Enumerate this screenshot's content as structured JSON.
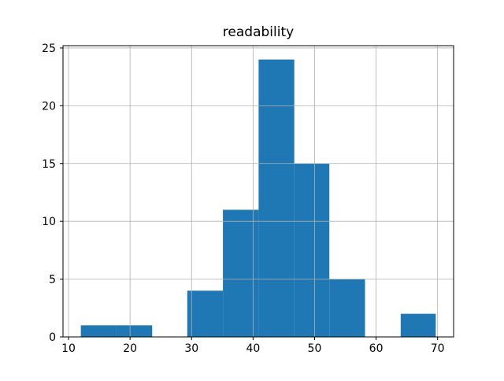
{
  "figure": {
    "background": "#ffffff"
  },
  "chart_data": {
    "type": "bar",
    "subtype": "histogram",
    "title": "readability",
    "xlabel": "",
    "ylabel": "",
    "bin_edges": [
      12.0,
      17.8,
      23.6,
      29.3,
      35.1,
      40.9,
      46.7,
      52.4,
      58.2,
      64.0,
      69.7
    ],
    "counts": [
      1,
      1,
      0,
      4,
      11,
      24,
      15,
      5,
      0,
      2
    ],
    "xticks": [
      10,
      20,
      30,
      40,
      50,
      60,
      70
    ],
    "yticks": [
      0,
      5,
      10,
      15,
      20,
      25
    ],
    "xlim": [
      9.1,
      72.6
    ],
    "ylim": [
      0,
      25.2
    ],
    "grid": true,
    "grid_over_bars": true,
    "legend": "none",
    "bar_color": "#1f77b4",
    "grid_color": "#b0b0b0",
    "spine_color": "#000000",
    "text_color": "#000000"
  }
}
